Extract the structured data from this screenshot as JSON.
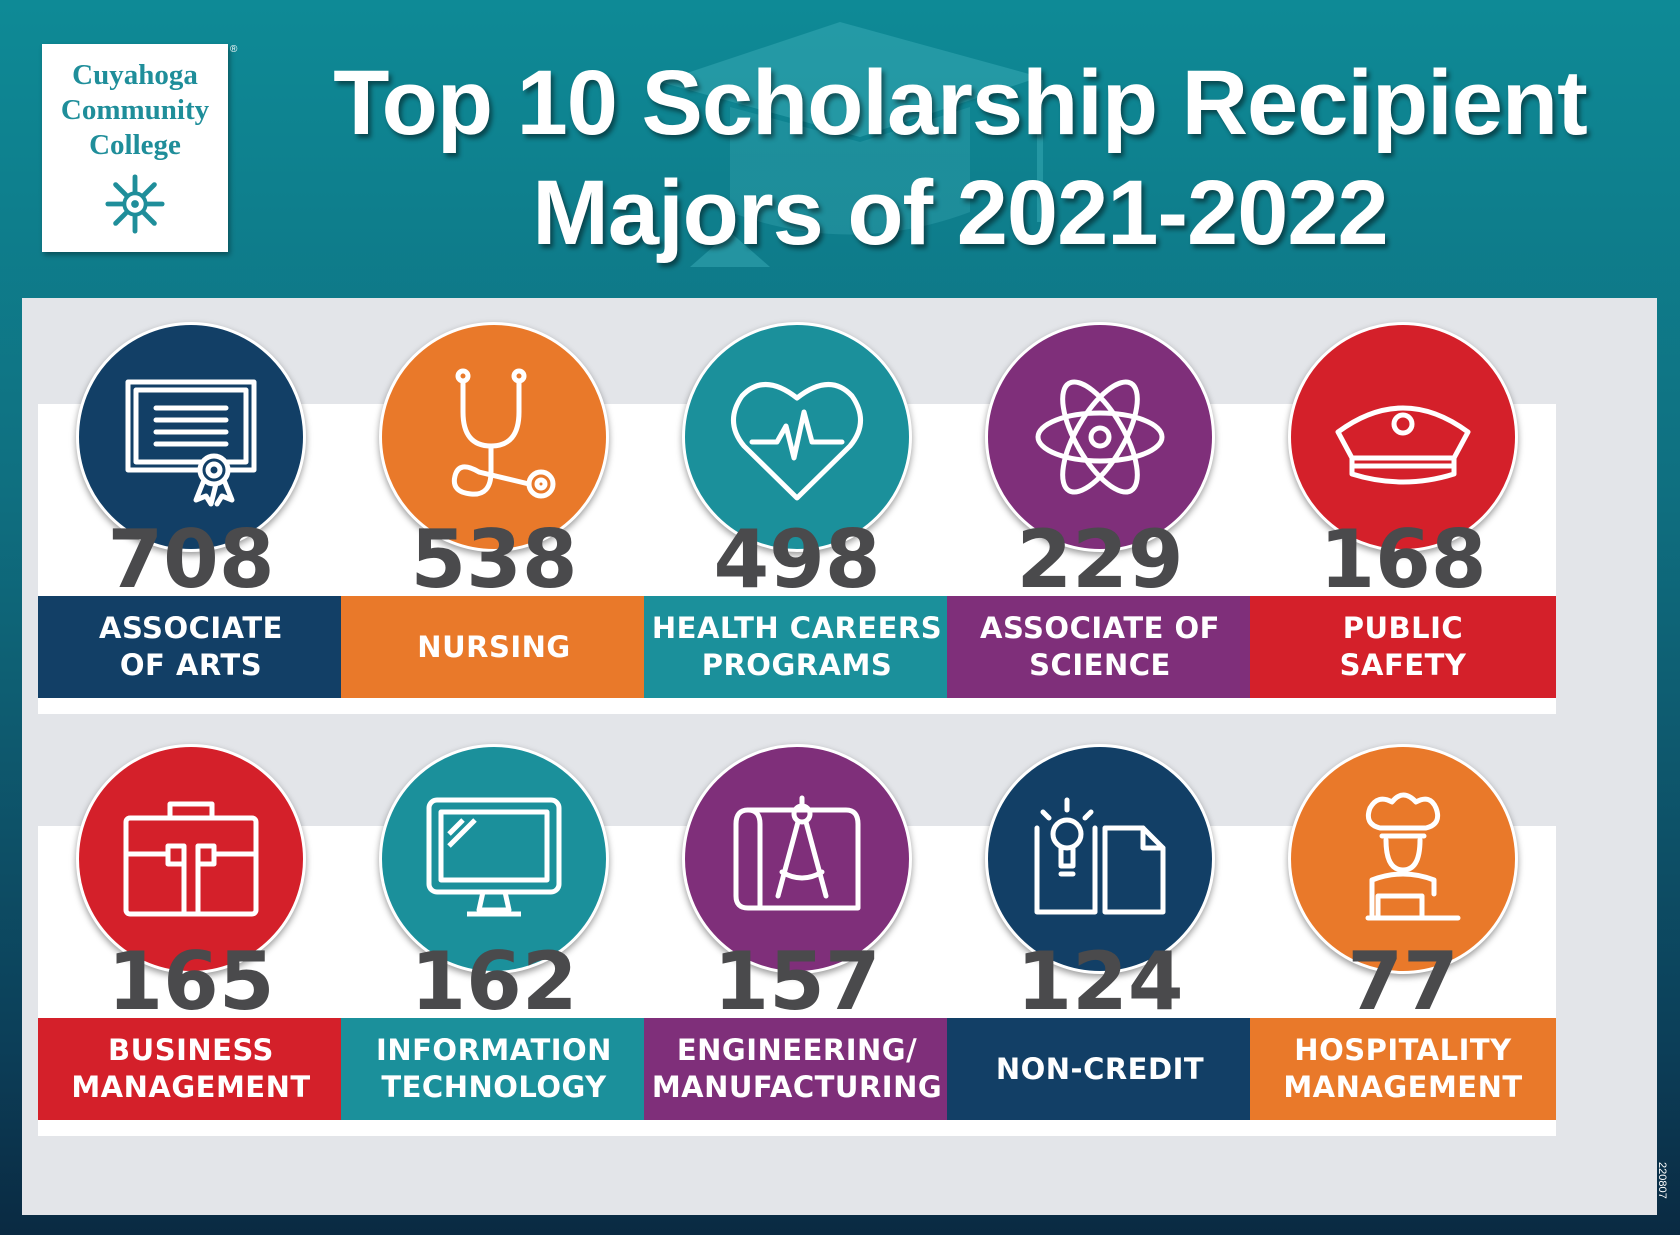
{
  "logo": {
    "lines": [
      "Cuyahoga",
      "Community",
      "College"
    ],
    "mark": "snowflake-seal-icon",
    "registered": "®"
  },
  "title": {
    "line1": "Top 10 Scholarship Recipient",
    "line2": "Majors of 2021-2022"
  },
  "code": "220807",
  "colors": {
    "navy": "#123f66",
    "orange": "#e9792a",
    "teal": "#1b909b",
    "purple": "#7f2f7a",
    "red": "#d4202a"
  },
  "chart_data": {
    "type": "table",
    "title": "Top 10 Scholarship Recipient Majors of 2021-2022",
    "unit": "scholarship recipients",
    "categories": [
      "ASSOCIATE OF ARTS",
      "NURSING",
      "HEALTH CAREERS PROGRAMS",
      "ASSOCIATE OF SCIENCE",
      "PUBLIC SAFETY",
      "BUSINESS MANAGEMENT",
      "INFORMATION TECHNOLOGY",
      "ENGINEERING/ MANUFACTURING",
      "NON-CREDIT",
      "HOSPITALITY MANAGEMENT"
    ],
    "values": [
      708,
      538,
      498,
      229,
      168,
      165,
      162,
      157,
      124,
      77
    ],
    "items": [
      {
        "value": "708",
        "label": "ASSOCIATE\nOF ARTS",
        "color": "#123f66",
        "icon": "diploma-icon"
      },
      {
        "value": "538",
        "label": "NURSING",
        "color": "#e9792a",
        "icon": "stethoscope-icon"
      },
      {
        "value": "498",
        "label": "HEALTH CAREERS\nPROGRAMS",
        "color": "#1b909b",
        "icon": "heartbeat-icon"
      },
      {
        "value": "229",
        "label": "ASSOCIATE OF\nSCIENCE",
        "color": "#7f2f7a",
        "icon": "atom-icon"
      },
      {
        "value": "168",
        "label": "PUBLIC\nSAFETY",
        "color": "#d4202a",
        "icon": "police-cap-icon"
      },
      {
        "value": "165",
        "label": "BUSINESS\nMANAGEMENT",
        "color": "#d4202a",
        "icon": "briefcase-icon"
      },
      {
        "value": "162",
        "label": "INFORMATION\nTECHNOLOGY",
        "color": "#1b909b",
        "icon": "monitor-icon"
      },
      {
        "value": "157",
        "label": "ENGINEERING/\nMANUFACTURING",
        "color": "#7f2f7a",
        "icon": "compass-blueprint-icon"
      },
      {
        "value": "124",
        "label": "NON-CREDIT",
        "color": "#123f66",
        "icon": "book-lightbulb-icon"
      },
      {
        "value": "77",
        "label": "HOSPITALITY\nMANAGEMENT",
        "color": "#e9792a",
        "icon": "chef-icon"
      }
    ]
  }
}
